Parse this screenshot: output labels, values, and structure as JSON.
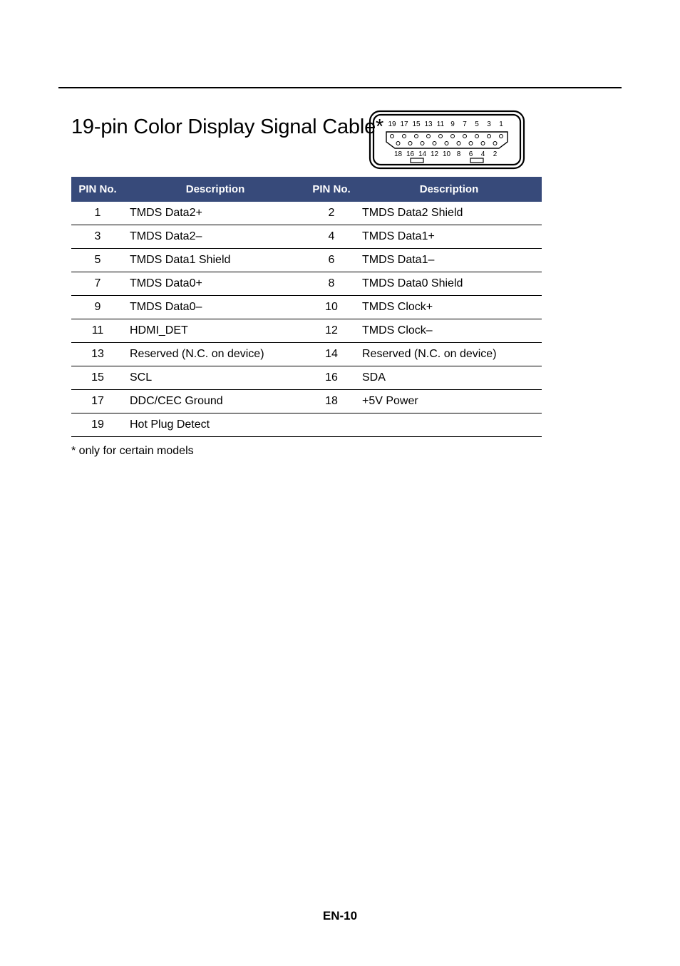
{
  "title": "19-pin Color Display Signal Cable*",
  "headers": {
    "pin1": "PIN No.",
    "desc1": "Description",
    "pin2": "PIN No.",
    "desc2": "Description"
  },
  "rows": [
    {
      "p1": "1",
      "d1": "TMDS Data2+",
      "p2": "2",
      "d2": "TMDS Data2 Shield"
    },
    {
      "p1": "3",
      "d1": "TMDS Data2–",
      "p2": "4",
      "d2": "TMDS Data1+"
    },
    {
      "p1": "5",
      "d1": "TMDS Data1 Shield",
      "p2": "6",
      "d2": "TMDS Data1–"
    },
    {
      "p1": "7",
      "d1": "TMDS Data0+",
      "p2": "8",
      "d2": "TMDS Data0 Shield"
    },
    {
      "p1": "9",
      "d1": "TMDS Data0–",
      "p2": "10",
      "d2": "TMDS Clock+"
    },
    {
      "p1": "11",
      "d1": "HDMI_DET",
      "p2": "12",
      "d2": "TMDS Clock–"
    },
    {
      "p1": "13",
      "d1": "Reserved (N.C. on device)",
      "p2": "14",
      "d2": "Reserved (N.C. on device)"
    },
    {
      "p1": "15",
      "d1": "SCL",
      "p2": "16",
      "d2": "SDA"
    },
    {
      "p1": "17",
      "d1": "DDC/CEC Ground",
      "p2": "18",
      "d2": "+5V Power"
    },
    {
      "p1": "19",
      "d1": "Hot Plug Detect",
      "p2": "",
      "d2": ""
    }
  ],
  "footnote": "* only for certain models",
  "page_footer": "EN-10",
  "connector": {
    "top_labels": [
      "19",
      "17",
      "15",
      "13",
      "11",
      "9",
      "7",
      "5",
      "3",
      "1"
    ],
    "bottom_labels": [
      "18",
      "16",
      "14",
      "12",
      "10",
      "8",
      "6",
      "4",
      "2"
    ],
    "label_fontsize": 10,
    "stroke": "#000000",
    "fill": "#ffffff"
  },
  "colors": {
    "header_bg": "#374a7a",
    "header_text": "#ffffff",
    "text": "#000000",
    "border": "#000000",
    "background": "#ffffff"
  },
  "typography": {
    "title_fontsize": 29,
    "body_fontsize": 16,
    "header_fontsize": 15,
    "footer_fontsize": 17
  }
}
